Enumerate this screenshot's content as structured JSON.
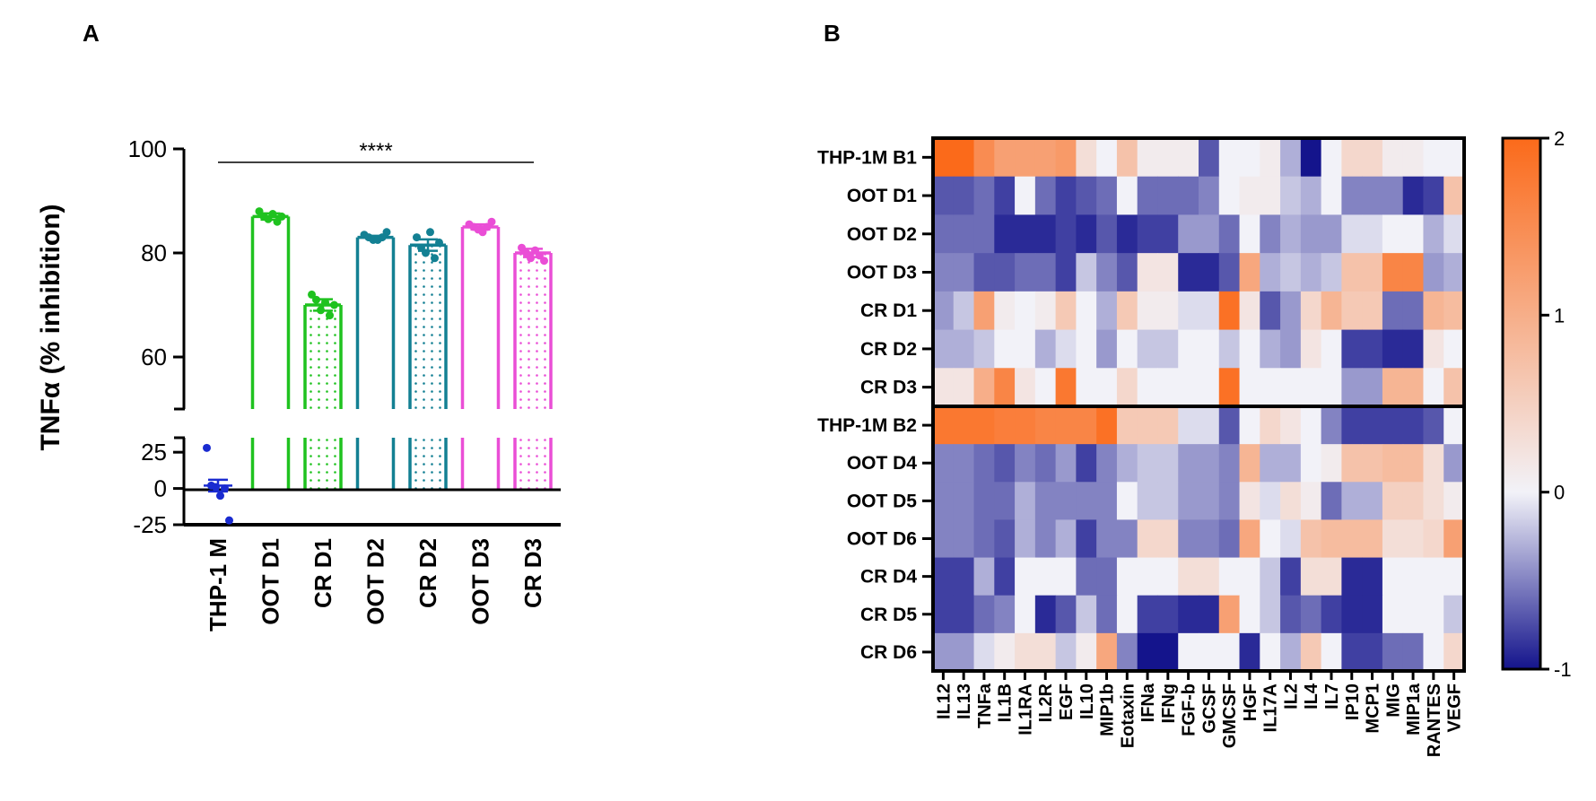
{
  "panels": {
    "a_label": "A",
    "b_label": "B"
  },
  "chart_data": [
    {
      "type": "bar",
      "ylabel": "TNFα (% inhibition)",
      "categories": [
        "THP-1 M",
        "OOT D1",
        "CR D1",
        "OOT D2",
        "CR D2",
        "OOT D3",
        "CR D3"
      ],
      "values": [
        2,
        87,
        70,
        83,
        81.5,
        85,
        80
      ],
      "sem": [
        4,
        0.6,
        1.1,
        0.3,
        1.1,
        0.5,
        0.8
      ],
      "points": [
        [
          28,
          2,
          1,
          -5,
          0,
          -22
        ],
        [
          88,
          87,
          86.5,
          87.5,
          86,
          87
        ],
        [
          72,
          71,
          69,
          70.5,
          68,
          70
        ],
        [
          83.5,
          83,
          82.5,
          82.5,
          83,
          84
        ],
        [
          83,
          81,
          80,
          84,
          79,
          82
        ],
        [
          85.5,
          85,
          84.5,
          84,
          85,
          86
        ],
        [
          81,
          80,
          79,
          80.5,
          79.5,
          78.5
        ]
      ],
      "colors": [
        "#1a2bd0",
        "#1fc21f",
        "#1fc21f",
        "#138093",
        "#138093",
        "#ea4ed6",
        "#ea4ed6"
      ],
      "patterned": [
        false,
        false,
        true,
        false,
        true,
        false,
        true
      ],
      "y_ticks_upper": [
        "60",
        "80",
        "100"
      ],
      "y_ticks_lower": [
        "-25",
        "0",
        "25"
      ],
      "ylim_upper": [
        50,
        100
      ],
      "ylim_lower": [
        -25,
        35
      ],
      "significance": "****"
    },
    {
      "type": "heatmap",
      "rows": [
        "THP-1M B1",
        "OOT D1",
        "OOT D2",
        "OOT D3",
        "CR D1",
        "CR D2",
        "CR D3",
        "THP-1M B2",
        "OOT D4",
        "OOT D5",
        "OOT D6",
        "CR D4",
        "CR D5",
        "CR D6"
      ],
      "group_sizes": [
        7,
        7
      ],
      "columns": [
        "IL12",
        "IL13",
        "TNFa",
        "IL1B",
        "IL1RA",
        "IL2R",
        "EGF",
        "IL10",
        "MIP1b",
        "Eotaxin",
        "IFNa",
        "IFNg",
        "FGF-b",
        "GCSF",
        "GMCSF",
        "HGF",
        "IL17A",
        "IL2",
        "IL4",
        "IL7",
        "IP10",
        "MCP1",
        "MIG",
        "MIP1a",
        "RANTES",
        "VEGF"
      ],
      "values": [
        [
          2,
          2,
          1.5,
          1.2,
          1.2,
          1.2,
          1.3,
          0.3,
          0,
          0.7,
          0.1,
          0.1,
          0.1,
          -0.7,
          0,
          0,
          0.1,
          -0.3,
          -1,
          0,
          0.4,
          0.4,
          0.1,
          0.1,
          0,
          0
        ],
        [
          -0.7,
          -0.7,
          -0.6,
          -0.8,
          0,
          -0.6,
          -0.8,
          -0.7,
          -0.6,
          0,
          -0.6,
          -0.6,
          -0.6,
          -0.5,
          0,
          0.1,
          0.1,
          -0.2,
          -0.3,
          0,
          -0.5,
          -0.5,
          -0.5,
          -0.9,
          -0.8,
          0.7
        ],
        [
          -0.6,
          -0.6,
          -0.6,
          -0.9,
          -0.9,
          -0.9,
          -0.8,
          -0.9,
          -0.7,
          -0.9,
          -0.8,
          -0.8,
          -0.4,
          -0.4,
          -0.6,
          0,
          -0.5,
          -0.3,
          -0.4,
          -0.4,
          -0.1,
          -0.1,
          0,
          0,
          -0.3,
          -0.1
        ],
        [
          -0.5,
          -0.5,
          -0.7,
          -0.7,
          -0.6,
          -0.6,
          -0.8,
          -0.2,
          -0.5,
          -0.7,
          0.2,
          0.2,
          -0.9,
          -0.9,
          -0.7,
          1.1,
          -0.3,
          -0.2,
          -0.3,
          -0.2,
          0.7,
          0.7,
          1.6,
          1.6,
          -0.4,
          -0.3
        ],
        [
          -0.4,
          -0.2,
          1.2,
          0.1,
          0,
          0.1,
          0.6,
          0,
          -0.3,
          0.6,
          0.1,
          0.1,
          -0.1,
          -0.1,
          1.9,
          0.2,
          -0.7,
          -0.4,
          0.4,
          0.9,
          0.6,
          0.6,
          -0.6,
          -0.6,
          0.9,
          0.8
        ],
        [
          -0.3,
          -0.3,
          -0.2,
          0,
          0,
          -0.3,
          -0.1,
          0,
          -0.4,
          0,
          -0.2,
          -0.2,
          0,
          0,
          -0.2,
          0,
          -0.3,
          -0.4,
          0.2,
          0,
          -0.8,
          -0.8,
          -0.9,
          -0.9,
          0.2,
          0
        ],
        [
          0.2,
          0.2,
          1,
          1.6,
          0.2,
          0,
          1.8,
          0,
          0,
          0.4,
          0,
          0,
          0,
          0,
          1.9,
          0,
          0,
          0,
          0,
          0,
          -0.4,
          -0.4,
          0.9,
          0.9,
          0,
          0.7
        ],
        [
          1.8,
          1.8,
          1.8,
          1.7,
          1.7,
          1.6,
          1.6,
          1.6,
          1.9,
          0.6,
          0.6,
          0.6,
          -0.1,
          -0.1,
          -0.7,
          0,
          0.4,
          0.2,
          0,
          -0.5,
          -0.8,
          -0.8,
          -0.8,
          -0.8,
          -0.7,
          0
        ],
        [
          -0.5,
          -0.5,
          -0.6,
          -0.7,
          -0.5,
          -0.6,
          -0.4,
          -0.8,
          -0.5,
          -0.3,
          -0.2,
          -0.2,
          -0.4,
          -0.4,
          -0.5,
          0.9,
          -0.3,
          -0.3,
          0,
          0.1,
          0.7,
          0.7,
          0.8,
          0.8,
          0.3,
          -0.4
        ],
        [
          -0.5,
          -0.5,
          -0.6,
          -0.6,
          -0.3,
          -0.5,
          -0.5,
          -0.5,
          -0.5,
          0,
          -0.2,
          -0.2,
          -0.4,
          -0.4,
          -0.5,
          0.2,
          -0.1,
          0.3,
          0.1,
          -0.6,
          -0.3,
          -0.3,
          0.5,
          0.5,
          0.3,
          0.1
        ],
        [
          -0.5,
          -0.5,
          -0.6,
          -0.7,
          -0.3,
          -0.5,
          -0.3,
          -0.8,
          -0.5,
          -0.5,
          0.4,
          0.4,
          -0.5,
          -0.5,
          -0.6,
          1.1,
          0,
          -0.1,
          0.7,
          0.8,
          0.8,
          0.8,
          0.3,
          0.3,
          0.4,
          1.2
        ],
        [
          -0.8,
          -0.8,
          -0.3,
          -0.8,
          0,
          0,
          0,
          -0.6,
          -0.6,
          0,
          0,
          0,
          0.3,
          0.3,
          0,
          0,
          -0.2,
          -0.8,
          0.3,
          0.3,
          -0.9,
          -0.9,
          0,
          0,
          0,
          0
        ],
        [
          -0.8,
          -0.8,
          -0.6,
          -0.5,
          0,
          -0.9,
          -0.7,
          -0.2,
          -0.6,
          0,
          -0.8,
          -0.8,
          -0.9,
          -0.9,
          1.2,
          0,
          -0.2,
          -0.7,
          -0.6,
          -0.8,
          -0.9,
          -0.9,
          0,
          0,
          0,
          -0.2
        ],
        [
          -0.4,
          -0.4,
          -0.1,
          0.1,
          0.3,
          0.3,
          -0.2,
          0.1,
          1.1,
          -0.5,
          -1,
          -1,
          0,
          0,
          0,
          -0.9,
          0,
          -0.3,
          0.6,
          0,
          -0.8,
          -0.8,
          -0.6,
          -0.6,
          0,
          0.4
        ]
      ],
      "colorbar": {
        "min": -1,
        "max": 2,
        "ticks": [
          "2",
          "1",
          "0",
          "-1"
        ],
        "low_color": "#14148c",
        "mid_color": "#f2f2f8",
        "high_color": "#fb6a1a"
      }
    }
  ]
}
